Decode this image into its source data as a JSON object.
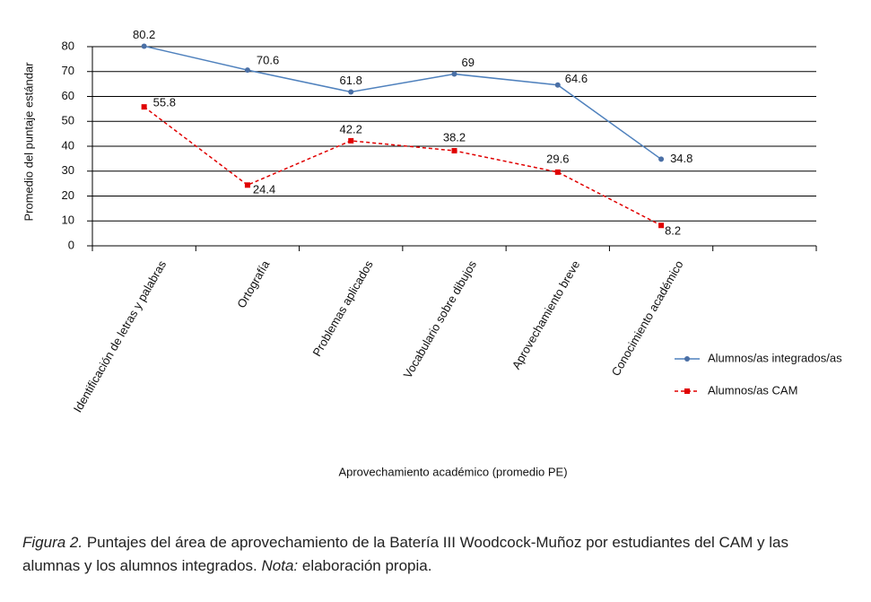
{
  "chart_data": {
    "type": "line",
    "y_label": "Promedio del puntaje estándar",
    "x_label": "Aprovechamiento académico (promedio PE)",
    "categories": [
      "Identificación de letras y palabras",
      "Ortografía",
      "Problemas aplicados",
      "Vocabulario sobre dibujos",
      "Aprovechamiento breve",
      "Conocimiento académico",
      null
    ],
    "series": [
      {
        "name": "Alumnos/as integrados/as",
        "color": "#4f81bd",
        "marker_color": "#4a6fa5",
        "line_style": "solid",
        "marker": "circle",
        "values": [
          80.2,
          70.6,
          61.8,
          69,
          64.6,
          34.8,
          null
        ]
      },
      {
        "name": "Alumnos/as CAM",
        "color": "#e00000",
        "marker_color": "#e00000",
        "line_style": "dashed",
        "marker": "square",
        "values": [
          55.8,
          24.4,
          42.2,
          38.2,
          29.6,
          8.2,
          null
        ]
      }
    ],
    "ylim": [
      0,
      80
    ],
    "yticks": [
      0,
      10,
      20,
      30,
      40,
      50,
      60,
      70,
      80
    ],
    "grid": true,
    "legend": "right"
  },
  "caption": {
    "figure_label": "Figura 2.",
    "text": "Puntajes del área de aprovechamiento de la Batería III Woodcock-Muñoz por estudiantes del CAM y las alumnas y los alumnos integrados.",
    "note_label": "Nota:",
    "note_text": "elaboración propia."
  }
}
